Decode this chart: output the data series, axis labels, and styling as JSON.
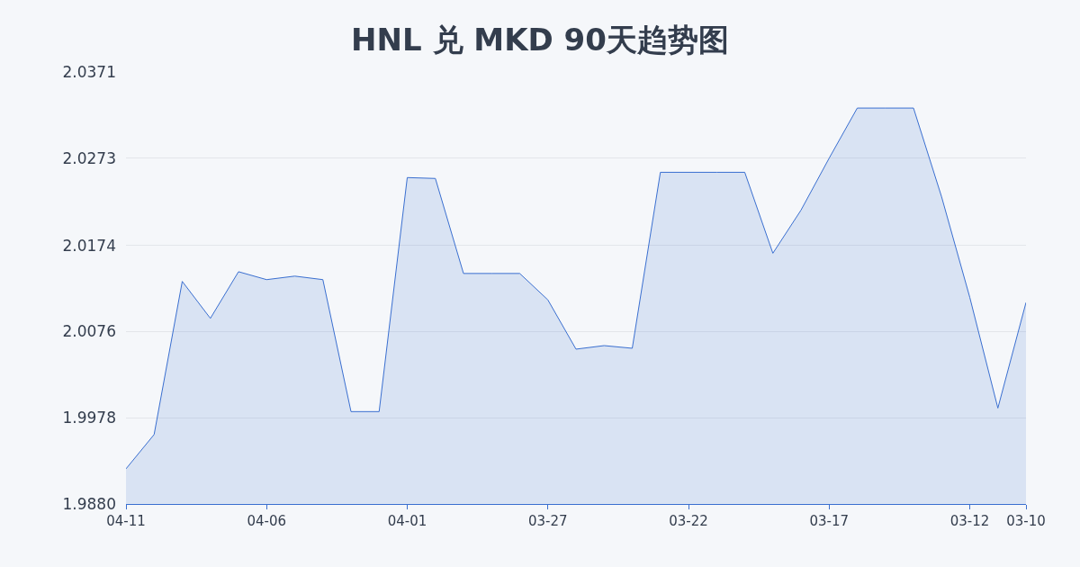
{
  "chart_data": {
    "type": "area",
    "title": "HNL 兑 MKD 90天趋势图",
    "x": [
      "--04-11",
      "--04-10",
      "--04-09",
      "--04-08",
      "--04-07",
      "--04-06",
      "--04-05",
      "--04-04",
      "--04-03",
      "--04-02",
      "--04-01",
      "--03-31",
      "--03-30",
      "--03-29",
      "--03-28",
      "--03-27",
      "--03-26",
      "--03-25",
      "--03-24",
      "--03-23",
      "--03-22",
      "--03-21",
      "--03-20",
      "--03-19",
      "--03-18",
      "--03-17",
      "--03-16",
      "--03-15",
      "--03-14",
      "--03-13",
      "--03-12",
      "--03-11",
      "--03-10"
    ],
    "series": [
      {
        "color": "#3a6fd0",
        "values": [
          1.992,
          1.9959,
          2.0133,
          2.0091,
          2.0144,
          2.0135,
          2.0139,
          2.0135,
          1.9985,
          1.9985,
          2.0251,
          2.025,
          2.0142,
          2.0142,
          2.0142,
          2.0112,
          2.0056,
          2.006,
          2.0057,
          2.0257,
          2.0257,
          2.0257,
          2.0257,
          2.0165,
          2.0214,
          2.0273,
          2.033,
          2.033,
          2.033,
          2.0229,
          2.0115,
          1.9989,
          2.0109
        ]
      }
    ],
    "xlim": [
      "--04-11",
      "--03-10"
    ],
    "xticks": [
      {
        "value": "--04-11",
        "label": "04-11"
      },
      {
        "value": "--04-06",
        "label": "04-06"
      },
      {
        "value": "--04-01",
        "label": "04-01"
      },
      {
        "value": "--03-27",
        "label": "03-27"
      },
      {
        "value": "--03-22",
        "label": "03-22"
      },
      {
        "value": "--03-17",
        "label": "03-17"
      },
      {
        "value": "--03-12",
        "label": "03-12"
      },
      {
        "value": "--03-10",
        "label": "03-10"
      }
    ],
    "ylim": [
      1.988,
      2.0371
    ],
    "yticks": [
      {
        "value": 1.988,
        "label": "1.9880"
      },
      1.9978,
      2.0076,
      2.0174,
      2.0273,
      2.0371
    ],
    "grid": "y",
    "legend": false,
    "marker": "none",
    "line_style": "solid"
  }
}
